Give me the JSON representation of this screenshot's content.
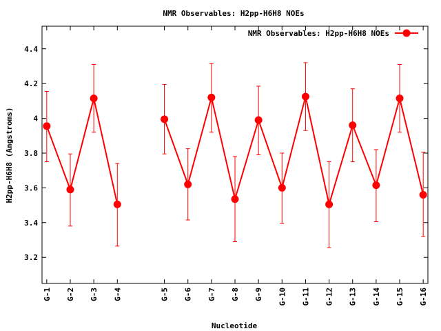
{
  "chart_data": {
    "type": "line",
    "title": "NMR Observables: H2pp-H6H8 NOEs",
    "xlabel": "Nucleotide",
    "ylabel": "H2pp-H6H8 (Angstroms)",
    "categories": [
      "G-1",
      "G-2",
      "G-3",
      "G-4",
      "G-5",
      "G-6",
      "G-7",
      "G-8",
      "G-9",
      "G-10",
      "G-11",
      "G-12",
      "G-13",
      "G-14",
      "G-15",
      "G-16"
    ],
    "x": [
      1,
      2,
      3,
      4,
      6,
      7,
      8,
      9,
      10,
      11,
      12,
      13,
      14,
      15,
      16,
      17
    ],
    "xlim": [
      0.8,
      17.2
    ],
    "ylim": [
      3.05,
      4.53
    ],
    "yticks": [
      3.2,
      3.4,
      3.6,
      3.8,
      4.0,
      4.2,
      4.4
    ],
    "ytick_labels": [
      "3.2",
      "3.4",
      "3.6",
      "3.8",
      "4",
      "4.2",
      "4.4"
    ],
    "grid": false,
    "legend_position": "top-right",
    "series": [
      {
        "name": "NMR Observables: H2pp-H6H8 NOEs",
        "color": "#ff0000",
        "segments": [
          [
            0,
            3
          ],
          [
            4,
            15
          ]
        ],
        "values": [
          3.955,
          3.59,
          4.115,
          3.505,
          3.995,
          3.62,
          4.12,
          3.535,
          3.99,
          3.6,
          4.125,
          3.505,
          3.96,
          3.615,
          4.115,
          3.56
        ],
        "err_low": [
          3.75,
          3.38,
          3.92,
          3.265,
          3.795,
          3.415,
          3.92,
          3.29,
          3.79,
          3.395,
          3.93,
          3.255,
          3.75,
          3.405,
          3.92,
          3.32
        ],
        "err_high": [
          4.155,
          3.795,
          4.31,
          3.74,
          4.195,
          3.825,
          4.315,
          3.78,
          4.185,
          3.8,
          4.32,
          3.75,
          4.17,
          3.82,
          4.31,
          3.805
        ]
      }
    ]
  }
}
